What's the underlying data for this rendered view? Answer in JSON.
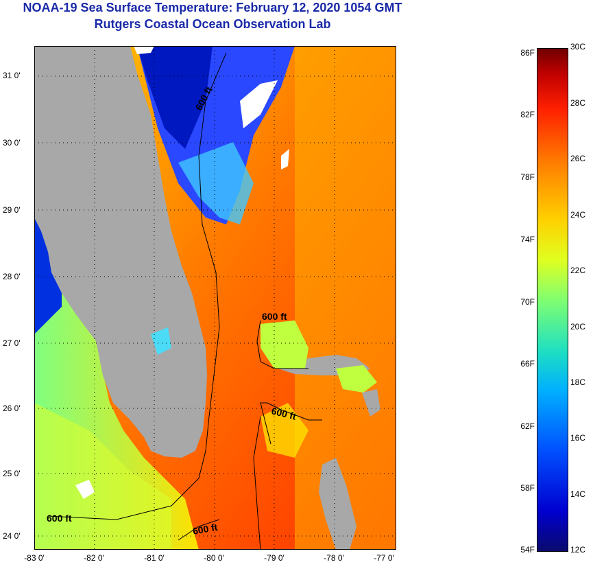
{
  "header": {
    "title": "NOAA-19 Sea Surface Temperature:  February 12, 2020 1054 GMT",
    "subtitle": "Rutgers Coastal Ocean Observation Lab"
  },
  "map": {
    "lat_labels": [
      "31 0'",
      "30 0'",
      "29 0'",
      "28 0'",
      "27 0'",
      "26 0'",
      "25 0'",
      "24 0'"
    ],
    "lon_labels": [
      "-83 0'",
      "-82 0'",
      "-81 0'",
      "-80 0'",
      "-79 0'",
      "-78 0'",
      "-77 0'"
    ],
    "contour_labels": [
      "600 ft",
      "600 ft",
      "600 ft",
      "600 ft",
      "600 ft"
    ],
    "land_color": "#a8a8a8",
    "cloud_color": "#ffffff"
  },
  "colorbar": {
    "f_labels": [
      "86F",
      "82F",
      "78F",
      "74F",
      "70F",
      "66F",
      "62F",
      "58F",
      "54F"
    ],
    "c_labels": [
      "30C",
      "28C",
      "26C",
      "24C",
      "22C",
      "20C",
      "18C",
      "16C",
      "14C",
      "12C"
    ]
  }
}
